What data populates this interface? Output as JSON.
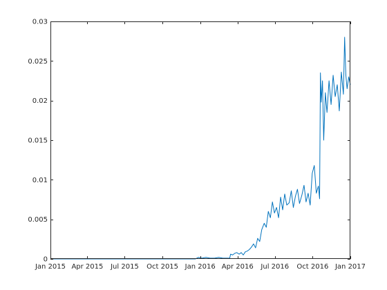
{
  "chart_data": {
    "type": "line",
    "title": "",
    "xlabel": "",
    "ylabel": "",
    "xlim": [
      "2015-01-01",
      "2017-01-01"
    ],
    "ylim": [
      0,
      0.03
    ],
    "grid": false,
    "box": true,
    "x_ticks": [
      {
        "date": "2015-01-01",
        "label": "Jan 2015"
      },
      {
        "date": "2015-04-01",
        "label": "Apr 2015"
      },
      {
        "date": "2015-07-01",
        "label": "Jul 2015"
      },
      {
        "date": "2015-10-01",
        "label": "Oct 2015"
      },
      {
        "date": "2016-01-01",
        "label": "Jan 2016"
      },
      {
        "date": "2016-04-01",
        "label": "Apr 2016"
      },
      {
        "date": "2016-07-01",
        "label": "Jul 2016"
      },
      {
        "date": "2016-10-01",
        "label": "Oct 2016"
      },
      {
        "date": "2017-01-01",
        "label": "Jan 2017"
      }
    ],
    "y_ticks": [
      {
        "value": 0,
        "label": "0"
      },
      {
        "value": 0.005,
        "label": "0.005"
      },
      {
        "value": 0.01,
        "label": "0.01"
      },
      {
        "value": 0.015,
        "label": "0.015"
      },
      {
        "value": 0.02,
        "label": "0.02"
      },
      {
        "value": 0.025,
        "label": "0.025"
      },
      {
        "value": 0.03,
        "label": "0.03"
      }
    ],
    "series": [
      {
        "color": "#0072bd",
        "x": [
          "2015-01-01",
          "2015-12-20",
          "2015-12-28",
          "2016-01-05",
          "2016-01-15",
          "2016-01-25",
          "2016-02-05",
          "2016-02-15",
          "2016-02-25",
          "2016-03-05",
          "2016-03-13",
          "2016-03-15",
          "2016-03-20",
          "2016-03-25",
          "2016-03-30",
          "2016-04-05",
          "2016-04-10",
          "2016-04-15",
          "2016-04-20",
          "2016-04-25",
          "2016-04-30",
          "2016-05-05",
          "2016-05-10",
          "2016-05-15",
          "2016-05-20",
          "2016-05-25",
          "2016-05-30",
          "2016-06-05",
          "2016-06-10",
          "2016-06-15",
          "2016-06-20",
          "2016-06-25",
          "2016-06-30",
          "2016-07-05",
          "2016-07-10",
          "2016-07-15",
          "2016-07-20",
          "2016-07-25",
          "2016-07-30",
          "2016-08-05",
          "2016-08-10",
          "2016-08-15",
          "2016-08-20",
          "2016-08-25",
          "2016-08-30",
          "2016-09-05",
          "2016-09-10",
          "2016-09-15",
          "2016-09-20",
          "2016-09-25",
          "2016-09-30",
          "2016-10-05",
          "2016-10-10",
          "2016-10-15",
          "2016-10-18",
          "2016-10-20",
          "2016-10-22",
          "2016-10-25",
          "2016-10-28",
          "2016-11-01",
          "2016-11-05",
          "2016-11-10",
          "2016-11-15",
          "2016-11-20",
          "2016-11-25",
          "2016-11-30",
          "2016-12-05",
          "2016-12-10",
          "2016-12-15",
          "2016-12-18",
          "2016-12-21",
          "2016-12-24",
          "2016-12-28",
          "2017-01-01"
        ],
        "y": [
          0,
          0,
          0.0002,
          0.0001,
          0.0002,
          0.0001,
          0.0001,
          0.0002,
          0.0001,
          0.0001,
          0.0001,
          0.0006,
          0.0005,
          0.0007,
          0.0008,
          0.0006,
          0.0008,
          0.0005,
          0.0009,
          0.001,
          0.0012,
          0.0015,
          0.0019,
          0.0014,
          0.0026,
          0.0022,
          0.0037,
          0.0045,
          0.004,
          0.006,
          0.0052,
          0.0072,
          0.0058,
          0.0065,
          0.0052,
          0.0078,
          0.0062,
          0.0082,
          0.0068,
          0.0071,
          0.0086,
          0.0065,
          0.0079,
          0.0088,
          0.007,
          0.0081,
          0.0093,
          0.0072,
          0.0083,
          0.0068,
          0.0108,
          0.0118,
          0.0083,
          0.0092,
          0.0076,
          0.0235,
          0.0198,
          0.0225,
          0.015,
          0.021,
          0.0185,
          0.0225,
          0.0195,
          0.0232,
          0.0205,
          0.022,
          0.0187,
          0.0236,
          0.0208,
          0.028,
          0.0232,
          0.0215,
          0.023,
          0.022
        ]
      }
    ]
  }
}
